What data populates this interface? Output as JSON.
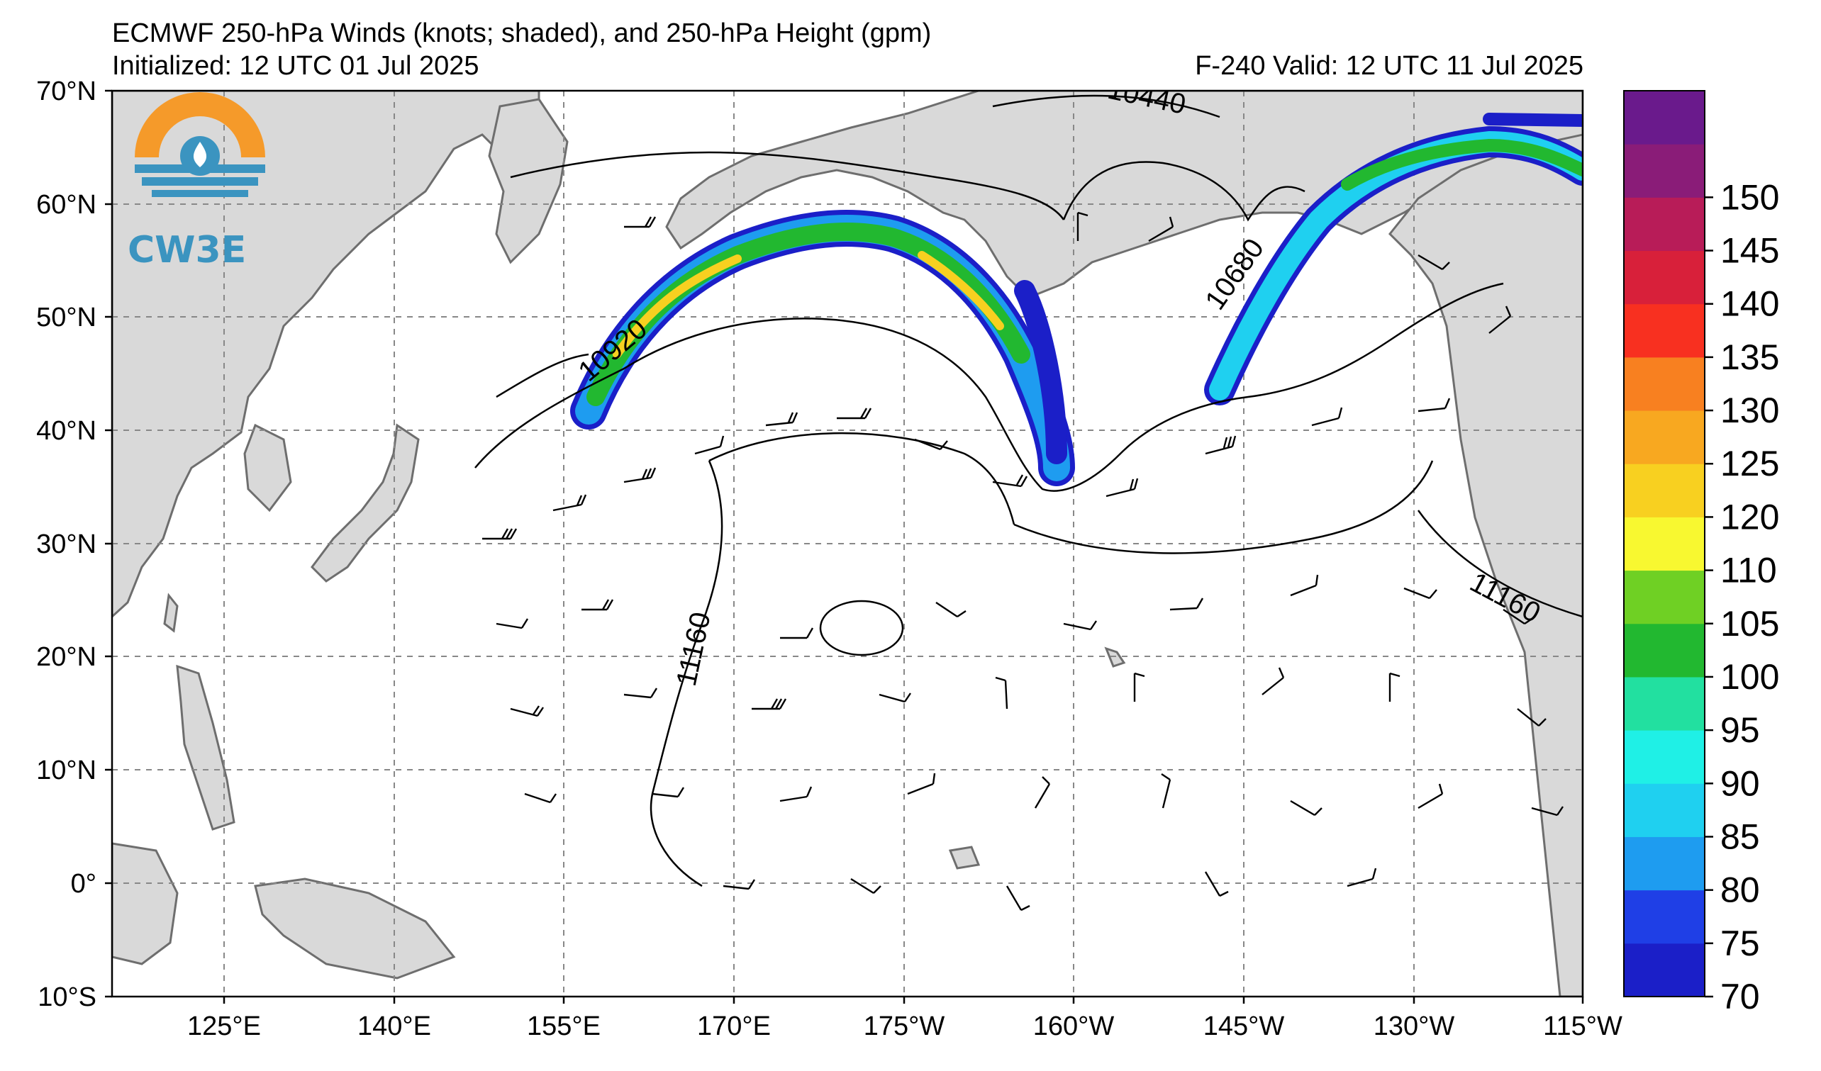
{
  "title": "ECMWF 250-hPa Winds (knots; shaded), and 250-hPa Height (gpm)",
  "initialized": "Initialized: 12 UTC 01 Jul 2025",
  "valid": "F-240  Valid: 12 UTC 11 Jul 2025",
  "logo": {
    "text": "CW3E",
    "icon": "water-drop-sun-logo-icon"
  },
  "lat_labels": [
    "70°N",
    "60°N",
    "50°N",
    "40°N",
    "30°N",
    "20°N",
    "10°N",
    "0°",
    "10°S"
  ],
  "lon_labels": [
    "125°E",
    "140°E",
    "155°E",
    "170°E",
    "175°W",
    "160°W",
    "145°W",
    "130°W",
    "115°W"
  ],
  "colorbar": {
    "levels": [
      "70",
      "75",
      "80",
      "85",
      "90",
      "95",
      "100",
      "105",
      "110",
      "120",
      "125",
      "130",
      "135",
      "140",
      "145",
      "150"
    ],
    "colors": [
      "#1b1fc8",
      "#1f3fe6",
      "#1e9cf0",
      "#1fd0f0",
      "#1ff0e6",
      "#22e0a0",
      "#22b830",
      "#6fd024",
      "#f8f830",
      "#f8d020",
      "#f8a820",
      "#f88020",
      "#f83020",
      "#d8203a",
      "#b81c58",
      "#8a1c78",
      "#6a1a8c"
    ]
  },
  "contour_labels": {
    "c10440": "10440",
    "c10920": "10920",
    "c10680": "10680",
    "c11160_west": "11160",
    "c11160_east": "11160"
  },
  "colors": {
    "land": "#d9d9d9",
    "coast": "#6e6e6e",
    "grid": "#888888",
    "logo_orange": "#f59a2a",
    "logo_blue": "#3b94c0"
  }
}
